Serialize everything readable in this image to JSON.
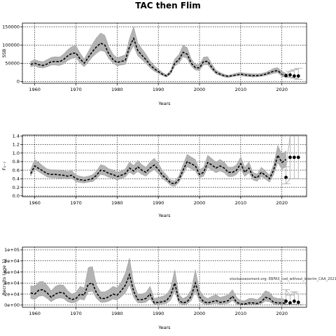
{
  "figure": {
    "title": "TAC then Flim"
  },
  "chart_data": [
    {
      "type": "area",
      "xlabel": "Years",
      "ylabel": "SSB",
      "xlim": [
        1957,
        2026
      ],
      "ylim": [
        -5000,
        160000
      ],
      "xticks": [
        1960,
        1970,
        1980,
        1990,
        2000,
        2010,
        2020
      ],
      "xtick_labels": [
        "1960",
        "1970",
        "1980",
        "1990",
        "2000",
        "2010",
        "2020"
      ],
      "yticks": [
        0,
        50000,
        100000,
        150000
      ],
      "ytick_labels": [
        "0",
        "50000",
        "100000",
        "150000"
      ],
      "grid": true,
      "series": [
        {
          "role": "median",
          "x": [
            1959,
            1960,
            1961,
            1962,
            1963,
            1964,
            1965,
            1966,
            1967,
            1968,
            1969,
            1970,
            1971,
            1972,
            1973,
            1974,
            1975,
            1976,
            1977,
            1978,
            1979,
            1980,
            1981,
            1982,
            1983,
            1984,
            1985,
            1986,
            1987,
            1988,
            1989,
            1990,
            1991,
            1992,
            1993,
            1994,
            1995,
            1996,
            1997,
            1998,
            1999,
            2000,
            2001,
            2002,
            2003,
            2004,
            2005,
            2006,
            2007,
            2008,
            2009,
            2010,
            2011,
            2012,
            2013,
            2014,
            2015,
            2016,
            2017,
            2018,
            2019,
            2020,
            2021
          ],
          "values": [
            47000,
            50000,
            46000,
            44000,
            48000,
            54000,
            55000,
            54000,
            60000,
            70000,
            77000,
            78000,
            62000,
            50000,
            66000,
            82000,
            95000,
            105000,
            100000,
            75000,
            60000,
            52000,
            55000,
            58000,
            95000,
            118000,
            85000,
            72000,
            60000,
            45000,
            35000,
            27000,
            20000,
            15000,
            25000,
            50000,
            60000,
            80000,
            75000,
            50000,
            38000,
            37000,
            55000,
            55000,
            38000,
            25000,
            20000,
            16000,
            14000,
            16000,
            18000,
            20000,
            18000,
            17000,
            16000,
            16000,
            17000,
            20000,
            24000,
            28000,
            30000,
            20000,
            16000
          ],
          "lower": [
            40000,
            43000,
            38000,
            37000,
            40000,
            45000,
            45000,
            44000,
            48000,
            57000,
            63000,
            65000,
            50000,
            40000,
            53000,
            67000,
            77000,
            85000,
            82000,
            62000,
            50000,
            43000,
            45000,
            47000,
            78000,
            98000,
            70000,
            60000,
            49000,
            37000,
            28000,
            22000,
            16000,
            12000,
            20000,
            42000,
            50000,
            68000,
            63000,
            42000,
            31000,
            30000,
            46000,
            46000,
            31000,
            20000,
            16000,
            12000,
            11000,
            13000,
            15000,
            16000,
            14000,
            13000,
            12000,
            13000,
            14000,
            16000,
            19000,
            22000,
            24000,
            14000,
            11000
          ],
          "upper": [
            55000,
            60000,
            56000,
            54000,
            60000,
            66000,
            68000,
            67000,
            75000,
            87000,
            96000,
            98000,
            78000,
            62000,
            82000,
            103000,
            120000,
            133000,
            127000,
            95000,
            75000,
            65000,
            69000,
            73000,
            118000,
            150000,
            106000,
            90000,
            75000,
            57000,
            44000,
            34000,
            25000,
            19000,
            31000,
            62000,
            74000,
            99000,
            93000,
            62000,
            47000,
            46000,
            67000,
            68000,
            48000,
            31000,
            25000,
            20000,
            17000,
            20000,
            23000,
            25000,
            23000,
            22000,
            21000,
            21000,
            22000,
            25000,
            30000,
            36000,
            38000,
            28000,
            22000
          ]
        },
        {
          "role": "projection",
          "x": [
            2021,
            2022,
            2023,
            2024
          ],
          "values": [
            16000,
            18000,
            15000,
            15000
          ],
          "lower": [
            13000,
            11000,
            9000,
            6000
          ],
          "upper": [
            20000,
            28000,
            32000,
            36000
          ]
        }
      ]
    },
    {
      "type": "area",
      "xlabel": "Years",
      "ylabel": "F₁₋₇",
      "xlim": [
        1957,
        2026
      ],
      "ylim": [
        -0.02,
        1.42
      ],
      "xticks": [
        1960,
        1970,
        1980,
        1990,
        2000,
        2010,
        2020
      ],
      "xtick_labels": [
        "1960",
        "1970",
        "1980",
        "1990",
        "2000",
        "2010",
        "2020"
      ],
      "yticks": [
        0,
        0.2,
        0.4,
        0.6,
        0.8,
        1.0,
        1.2,
        1.4
      ],
      "ytick_labels": [
        "0.0",
        "0.2",
        "0.4",
        "0.6",
        "0.8",
        "1.0",
        "1.2",
        "1.4"
      ],
      "grid": true,
      "series": [
        {
          "role": "median",
          "x": [
            1959,
            1960,
            1961,
            1962,
            1963,
            1964,
            1965,
            1966,
            1967,
            1968,
            1969,
            1970,
            1971,
            1972,
            1973,
            1974,
            1975,
            1976,
            1977,
            1978,
            1979,
            1980,
            1981,
            1982,
            1983,
            1984,
            1985,
            1986,
            1987,
            1988,
            1989,
            1990,
            1991,
            1992,
            1993,
            1994,
            1995,
            1996,
            1997,
            1998,
            1999,
            2000,
            2001,
            2002,
            2003,
            2004,
            2005,
            2006,
            2007,
            2008,
            2009,
            2010,
            2011,
            2012,
            2013,
            2014,
            2015,
            2016,
            2017,
            2018,
            2019,
            2020,
            2021
          ],
          "values": [
            0.52,
            0.7,
            0.64,
            0.58,
            0.52,
            0.5,
            0.5,
            0.49,
            0.48,
            0.46,
            0.48,
            0.4,
            0.38,
            0.36,
            0.38,
            0.4,
            0.48,
            0.6,
            0.58,
            0.52,
            0.5,
            0.45,
            0.48,
            0.52,
            0.65,
            0.58,
            0.68,
            0.6,
            0.55,
            0.65,
            0.72,
            0.62,
            0.48,
            0.4,
            0.3,
            0.28,
            0.38,
            0.6,
            0.8,
            0.75,
            0.7,
            0.5,
            0.55,
            0.78,
            0.72,
            0.65,
            0.7,
            0.65,
            0.55,
            0.55,
            0.6,
            0.75,
            0.55,
            0.65,
            0.45,
            0.42,
            0.55,
            0.48,
            0.4,
            0.6,
            0.95,
            0.78,
            0.85
          ],
          "lower": [
            0.46,
            0.62,
            0.56,
            0.5,
            0.44,
            0.42,
            0.42,
            0.41,
            0.4,
            0.39,
            0.41,
            0.33,
            0.31,
            0.3,
            0.32,
            0.33,
            0.4,
            0.5,
            0.48,
            0.43,
            0.41,
            0.37,
            0.4,
            0.44,
            0.55,
            0.49,
            0.57,
            0.5,
            0.46,
            0.55,
            0.61,
            0.52,
            0.4,
            0.33,
            0.24,
            0.22,
            0.31,
            0.5,
            0.68,
            0.63,
            0.58,
            0.42,
            0.46,
            0.66,
            0.6,
            0.54,
            0.58,
            0.54,
            0.45,
            0.45,
            0.5,
            0.63,
            0.45,
            0.54,
            0.37,
            0.34,
            0.45,
            0.39,
            0.32,
            0.49,
            0.78,
            0.62,
            0.68
          ],
          "upper": [
            0.62,
            0.85,
            0.78,
            0.7,
            0.63,
            0.61,
            0.61,
            0.6,
            0.59,
            0.57,
            0.59,
            0.49,
            0.46,
            0.44,
            0.46,
            0.49,
            0.58,
            0.73,
            0.7,
            0.63,
            0.61,
            0.55,
            0.58,
            0.63,
            0.79,
            0.71,
            0.83,
            0.73,
            0.67,
            0.79,
            0.88,
            0.76,
            0.59,
            0.49,
            0.37,
            0.35,
            0.47,
            0.73,
            0.97,
            0.91,
            0.85,
            0.61,
            0.67,
            0.95,
            0.87,
            0.79,
            0.85,
            0.79,
            0.67,
            0.67,
            0.73,
            0.91,
            0.67,
            0.79,
            0.55,
            0.51,
            0.67,
            0.58,
            0.49,
            0.73,
            1.18,
            0.98,
            1.05
          ]
        },
        {
          "role": "projection",
          "x": [
            2021,
            2022,
            2023,
            2024
          ],
          "values": [
            0.43,
            0.9,
            0.9,
            0.9
          ],
          "lower": [
            0.28,
            0.4,
            0.4,
            0.4
          ],
          "upper": [
            0.68,
            1.4,
            1.4,
            1.4
          ]
        }
      ]
    },
    {
      "type": "area",
      "xlabel": "Years",
      "ylabel": "Recruits (age 1)",
      "xlim": [
        1957,
        2026
      ],
      "ylim": [
        -4000,
        105000
      ],
      "xticks": [
        1960,
        1970,
        1980,
        1990,
        2000,
        2010,
        2020
      ],
      "xtick_labels": [
        "1960",
        "1970",
        "1980",
        "1990",
        "2000",
        "2010",
        "2020"
      ],
      "yticks": [
        0,
        20000,
        40000,
        60000,
        80000,
        100000
      ],
      "ytick_labels": [
        "0e+00",
        "2e+04",
        "4e+04",
        "6e+04",
        "8e+04",
        "1e+05"
      ],
      "grid": true,
      "annotation": "stockassessment.org: EBFA3_cod_without_interim_CAA_2021",
      "series": [
        {
          "role": "median",
          "x": [
            1959,
            1960,
            1961,
            1962,
            1963,
            1964,
            1965,
            1966,
            1967,
            1968,
            1969,
            1970,
            1971,
            1972,
            1973,
            1974,
            1975,
            1976,
            1977,
            1978,
            1979,
            1980,
            1981,
            1982,
            1983,
            1984,
            1985,
            1986,
            1987,
            1988,
            1989,
            1990,
            1991,
            1992,
            1993,
            1994,
            1995,
            1996,
            1997,
            1998,
            1999,
            2000,
            2001,
            2002,
            2003,
            2004,
            2005,
            2006,
            2007,
            2008,
            2009,
            2010,
            2011,
            2012,
            2013,
            2014,
            2015,
            2016,
            2017,
            2018,
            2019,
            2020,
            2021
          ],
          "values": [
            22000,
            20000,
            27000,
            28000,
            22000,
            14000,
            20000,
            23000,
            22000,
            14000,
            10000,
            12000,
            20000,
            18000,
            38000,
            40000,
            22000,
            12000,
            12000,
            15000,
            20000,
            18000,
            26000,
            36000,
            55000,
            25000,
            10000,
            10000,
            12000,
            20000,
            4000,
            5000,
            6000,
            8000,
            18000,
            40000,
            8000,
            4000,
            6000,
            16000,
            40000,
            15000,
            6000,
            4000,
            6000,
            8000,
            5000,
            6000,
            8000,
            16000,
            5000,
            2000,
            2000,
            4000,
            4000,
            3000,
            6000,
            14000,
            12000,
            5000,
            4000,
            4000,
            3000
          ],
          "lower": [
            12000,
            10000,
            16000,
            17000,
            12000,
            6000,
            11000,
            13000,
            12000,
            6000,
            4000,
            5000,
            11000,
            9000,
            24000,
            25000,
            12000,
            5000,
            5000,
            7000,
            11000,
            9000,
            15000,
            22000,
            37000,
            14000,
            4000,
            4000,
            5000,
            11000,
            1000,
            1500,
            2000,
            3000,
            9000,
            25000,
            3000,
            1000,
            2000,
            8000,
            25000,
            7000,
            2000,
            1000,
            2000,
            3000,
            1500,
            2000,
            3000,
            8000,
            1500,
            500,
            500,
            1000,
            1000,
            800,
            2000,
            7000,
            6000,
            1500,
            1000,
            1000,
            500
          ],
          "upper": [
            35000,
            34000,
            42000,
            43000,
            36000,
            26000,
            34000,
            37000,
            36000,
            26000,
            20000,
            23000,
            34000,
            31000,
            68000,
            70000,
            36000,
            24000,
            24000,
            28000,
            34000,
            31000,
            42000,
            58000,
            85000,
            40000,
            20000,
            20000,
            23000,
            34000,
            12000,
            14000,
            16000,
            19000,
            31000,
            64000,
            19000,
            12000,
            16000,
            28000,
            64000,
            27000,
            16000,
            12000,
            16000,
            19000,
            14000,
            16000,
            19000,
            28000,
            14000,
            8000,
            8000,
            12000,
            12000,
            10000,
            16000,
            26000,
            23000,
            14000,
            12000,
            12000,
            10000
          ]
        },
        {
          "role": "projection",
          "x": [
            2021,
            2022,
            2023,
            2024
          ],
          "values": [
            7000,
            4000,
            7000,
            5000
          ],
          "lower": [
            1500,
            800,
            1500,
            1000
          ],
          "upper": [
            28000,
            18000,
            24000,
            20000
          ]
        }
      ]
    }
  ]
}
